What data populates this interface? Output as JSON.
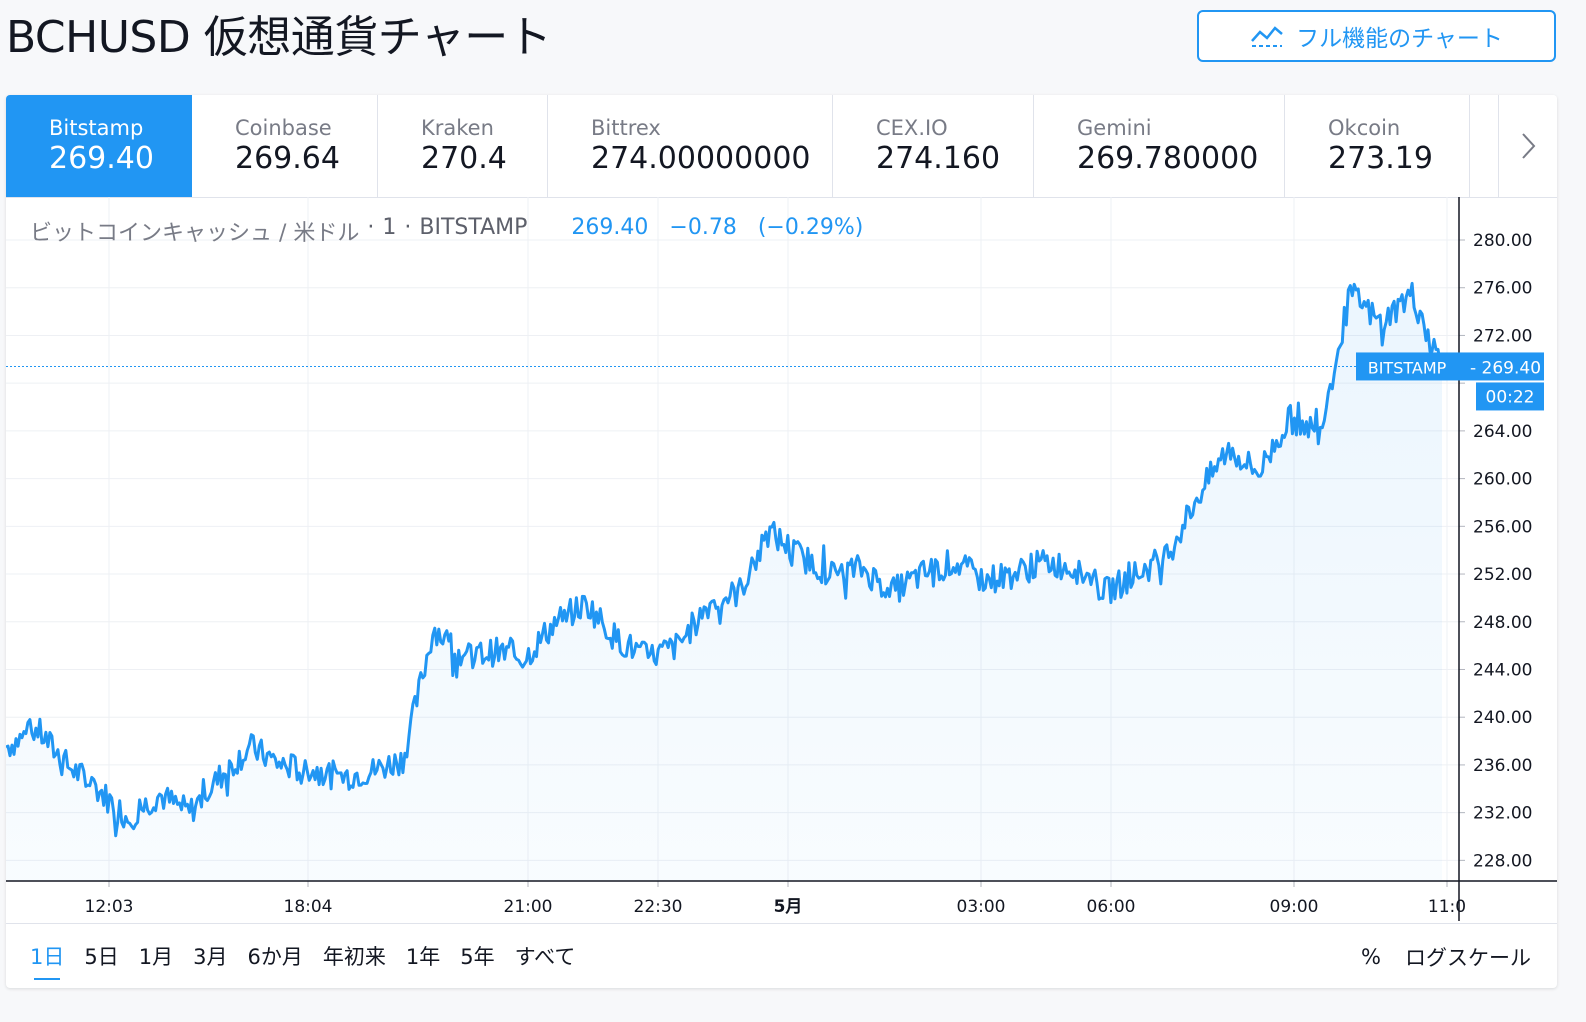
{
  "page": {
    "title": "BCHUSD 仮想通貨チャート",
    "full_chart_button": "フル機能のチャート"
  },
  "exchanges": [
    {
      "name": "Bitstamp",
      "price": "269.40"
    },
    {
      "name": "Coinbase",
      "price": "269.64"
    },
    {
      "name": "Kraken",
      "price": "270.4"
    },
    {
      "name": "Bittrex",
      "price": "274.00000000"
    },
    {
      "name": "CEX.IO",
      "price": "274.160"
    },
    {
      "name": "Gemini",
      "price": "269.780000"
    },
    {
      "name": "Okcoin",
      "price": "273.19"
    }
  ],
  "legend": {
    "symbol": "ビットコインキャッシュ / 米ドル",
    "sep1": "·",
    "interval": "1",
    "sep2": "·",
    "exchange": "BITSTAMP",
    "last": "269.40",
    "change": "−0.78",
    "change_pct": "(−0.29%)"
  },
  "price_tag": {
    "label": "BITSTAMP",
    "value": "269.40",
    "countdown": "00:22"
  },
  "ranges": [
    "1日",
    "5日",
    "1月",
    "3月",
    "6か月",
    "年初来",
    "1年",
    "5年",
    "すべて"
  ],
  "range_active": "1日",
  "toolbar_right": {
    "percent": "%",
    "log": "ログスケール"
  },
  "colors": {
    "accent": "#2196f3",
    "line": "#2196f3"
  },
  "chart_data": {
    "type": "area",
    "title": "",
    "xlabel": "",
    "ylabel": "",
    "x_ticks": [
      "12:03",
      "18:04",
      "21:00",
      "22:30",
      "5月",
      "03:00",
      "06:00",
      "09:00",
      "11:0"
    ],
    "y_ticks": [
      280,
      276,
      272,
      268,
      264,
      260,
      256,
      252,
      248,
      244,
      240,
      236,
      232,
      228
    ],
    "y_tick_labels": [
      "280.00",
      "276.00",
      "272.00",
      "",
      "264.00",
      "260.00",
      "256.00",
      "252.00",
      "248.00",
      "244.00",
      "240.00",
      "236.00",
      "232.00",
      "228.00"
    ],
    "ylim": [
      226.1,
      281.0
    ],
    "last_price": 269.4,
    "series": [
      {
        "x": [
          "12:03",
          "12:30",
          "13:00",
          "13:30",
          "14:00",
          "14:30",
          "15:00",
          "15:30",
          "16:00",
          "16:30",
          "17:00",
          "17:30",
          "18:00",
          "18:04",
          "18:30",
          "19:00",
          "19:30",
          "20:00",
          "20:30",
          "21:00",
          "21:30",
          "22:00",
          "22:30",
          "23:00",
          "23:30",
          "00:00",
          "00:30",
          "01:00",
          "01:30",
          "02:00",
          "02:30",
          "03:00",
          "03:30",
          "04:00",
          "04:30",
          "05:00",
          "05:30",
          "06:00",
          "06:30",
          "07:00",
          "07:30",
          "08:00",
          "08:30",
          "09:00",
          "09:30",
          "10:00",
          "10:30",
          "11:00"
        ],
        "values": [
          237.5,
          239.0,
          236.0,
          234.0,
          231.5,
          233.5,
          232.0,
          235.0,
          237.5,
          236.0,
          235.5,
          235.0,
          235.5,
          236.5,
          247.5,
          245.0,
          245.5,
          245.0,
          248.0,
          249.5,
          246.5,
          245.0,
          246.0,
          249.5,
          250.5,
          255.5,
          253.5,
          252.0,
          252.5,
          250.5,
          252.0,
          253.0,
          251.5,
          252.0,
          253.0,
          252.5,
          250.5,
          252.0,
          253.5,
          258.5,
          262.5,
          260.5,
          265.0,
          264.0,
          275.5,
          273.0,
          275.5,
          269.4
        ]
      }
    ]
  }
}
